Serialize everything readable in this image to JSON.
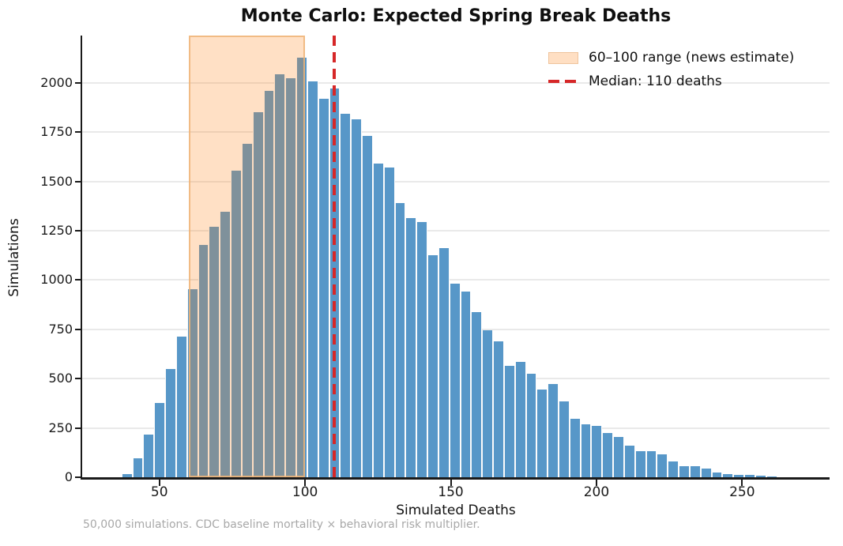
{
  "title": "Monte Carlo: Expected Spring Break Deaths",
  "footnote": "50,000 simulations. CDC baseline mortality × behavioral risk multiplier.",
  "legend": {
    "items": [
      {
        "swatch": "orange-range-patch",
        "label": "60–100 range (news estimate)"
      },
      {
        "swatch": "red-dashed-line",
        "label": "Median: 110 deaths"
      }
    ]
  },
  "colors": {
    "bar_blue": "#5797c8",
    "bar_inside_span": "#81929a",
    "span_fill_orange": "#ffdfc3",
    "median_red": "#d62728",
    "grid_gray": "#e9e9e9",
    "footnote_gray": "#a8a8a8"
  },
  "chart_data": {
    "type": "bar",
    "subtype": "histogram",
    "title": "Monte Carlo: Expected Spring Break Deaths",
    "xlabel": "Simulated Deaths",
    "ylabel": "Simulations",
    "xlim": [
      23.5,
      280
    ],
    "ylim": [
      0,
      2240
    ],
    "xticks": [
      50,
      100,
      150,
      200,
      250
    ],
    "yticks": [
      0,
      250,
      500,
      750,
      1000,
      1250,
      1500,
      1750,
      2000
    ],
    "grid": "horizontal",
    "legend_position": "upper right",
    "bin_start": 37,
    "bin_width": 3.75,
    "counts": [
      15,
      95,
      215,
      375,
      550,
      715,
      952,
      1180,
      1270,
      1345,
      1555,
      1692,
      1852,
      1960,
      2045,
      2025,
      2126,
      2008,
      1918,
      1972,
      1845,
      1816,
      1730,
      1591,
      1571,
      1391,
      1314,
      1295,
      1127,
      1161,
      980,
      940,
      837,
      744,
      690,
      566,
      586,
      526,
      446,
      473,
      383,
      296,
      270,
      262,
      223,
      203,
      159,
      133,
      133,
      116,
      80,
      56,
      56,
      45,
      25,
      18,
      12,
      13,
      7,
      3
    ],
    "highlight_span": {
      "from": 60,
      "to": 100,
      "label": "60–100 range (news estimate)"
    },
    "median_line": {
      "x": 110,
      "label": "Median: 110 deaths"
    }
  }
}
